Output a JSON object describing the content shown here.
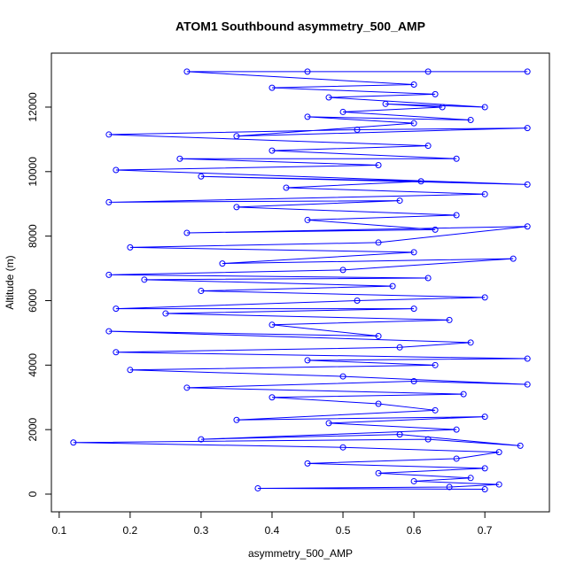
{
  "chart_data": {
    "type": "line",
    "markers": true,
    "title": "ATOM1 Southbound asymmetry_500_AMP",
    "x_label": "asymmetry_500_AMP",
    "y_label": "Altitude (m)",
    "xlim": [
      0.089,
      0.791
    ],
    "ylim": [
      -549,
      13674
    ],
    "xticks": [
      0.1,
      0.2,
      0.3,
      0.4,
      0.5,
      0.6,
      0.7
    ],
    "yticks": [
      0,
      2000,
      4000,
      6000,
      8000,
      10000,
      12000
    ],
    "series": [
      {
        "color": "#0000ff",
        "x": [
          0.7,
          0.38,
          0.65,
          0.72,
          0.6,
          0.68,
          0.55,
          0.7,
          0.45,
          0.66,
          0.72,
          0.5,
          0.12,
          0.62,
          0.75,
          0.58,
          0.3,
          0.66,
          0.48,
          0.7,
          0.35,
          0.63,
          0.55,
          0.4,
          0.67,
          0.28,
          0.6,
          0.76,
          0.5,
          0.2,
          0.63,
          0.45,
          0.76,
          0.18,
          0.58,
          0.68,
          0.17,
          0.55,
          0.4,
          0.65,
          0.25,
          0.6,
          0.18,
          0.52,
          0.7,
          0.3,
          0.57,
          0.22,
          0.62,
          0.17,
          0.5,
          0.74,
          0.33,
          0.6,
          0.2,
          0.55,
          0.76,
          0.28,
          0.63,
          0.45,
          0.66,
          0.35,
          0.58,
          0.17,
          0.7,
          0.42,
          0.61,
          0.3,
          0.76,
          0.18,
          0.55,
          0.27,
          0.66,
          0.4,
          0.62,
          0.17,
          0.52,
          0.76,
          0.35,
          0.6,
          0.45,
          0.68,
          0.5,
          0.64,
          0.56,
          0.7,
          0.48,
          0.63,
          0.4,
          0.6,
          0.28,
          0.45,
          0.62,
          0.76
        ],
        "values": [
          150,
          180,
          220,
          300,
          400,
          500,
          650,
          800,
          950,
          1100,
          1300,
          1450,
          1600,
          1700,
          1500,
          1850,
          1700,
          2000,
          2200,
          2400,
          2300,
          2600,
          2800,
          3000,
          3100,
          3300,
          3500,
          3400,
          3650,
          3850,
          4000,
          4150,
          4200,
          4400,
          4550,
          4700,
          5050,
          4900,
          5250,
          5400,
          5600,
          5750,
          5750,
          6000,
          6100,
          6300,
          6450,
          6650,
          6700,
          6800,
          6950,
          7300,
          7150,
          7500,
          7650,
          7800,
          8300,
          8100,
          8200,
          8500,
          8650,
          8900,
          9100,
          9050,
          9300,
          9500,
          9700,
          9850,
          9600,
          10050,
          10200,
          10400,
          10400,
          10650,
          10800,
          11150,
          11300,
          11350,
          11100,
          11500,
          11700,
          11600,
          11850,
          12000,
          12100,
          12000,
          12300,
          12400,
          12600,
          12700,
          13100,
          13100,
          13100,
          13100
        ]
      }
    ]
  }
}
